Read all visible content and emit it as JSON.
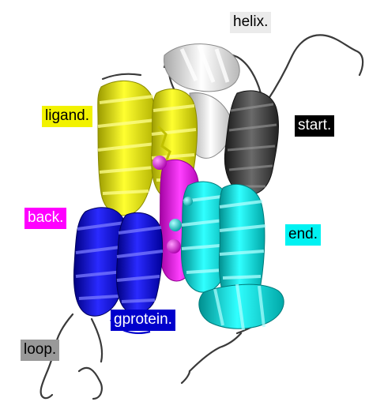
{
  "colors": {
    "background": "#ffffff",
    "helix": "#ebebeb",
    "ligand": "#f2f200",
    "start": "#000000",
    "back": "#ff00ff",
    "end": "#00f2f2",
    "gprotein": "#0000cc",
    "loop": "#999999",
    "sphere": "#cc00cc",
    "coil": "#3a3a3a"
  },
  "labels": {
    "helix": {
      "text": "helix.",
      "bg": "#ebebeb",
      "fg": "#000000"
    },
    "ligand": {
      "text": "ligand.",
      "bg": "#f2f200",
      "fg": "#000000"
    },
    "start": {
      "text": "start.",
      "bg": "#000000",
      "fg": "#ffffff"
    },
    "back": {
      "text": "back.",
      "bg": "#ff00ff",
      "fg": "#ffffff"
    },
    "end": {
      "text": "end.",
      "bg": "#00f2f2",
      "fg": "#000000"
    },
    "gprotein": {
      "text": "gprotein.",
      "bg": "#0000cc",
      "fg": "#ffffff"
    },
    "loop": {
      "text": "loop.",
      "bg": "#999999",
      "fg": "#000000"
    }
  }
}
